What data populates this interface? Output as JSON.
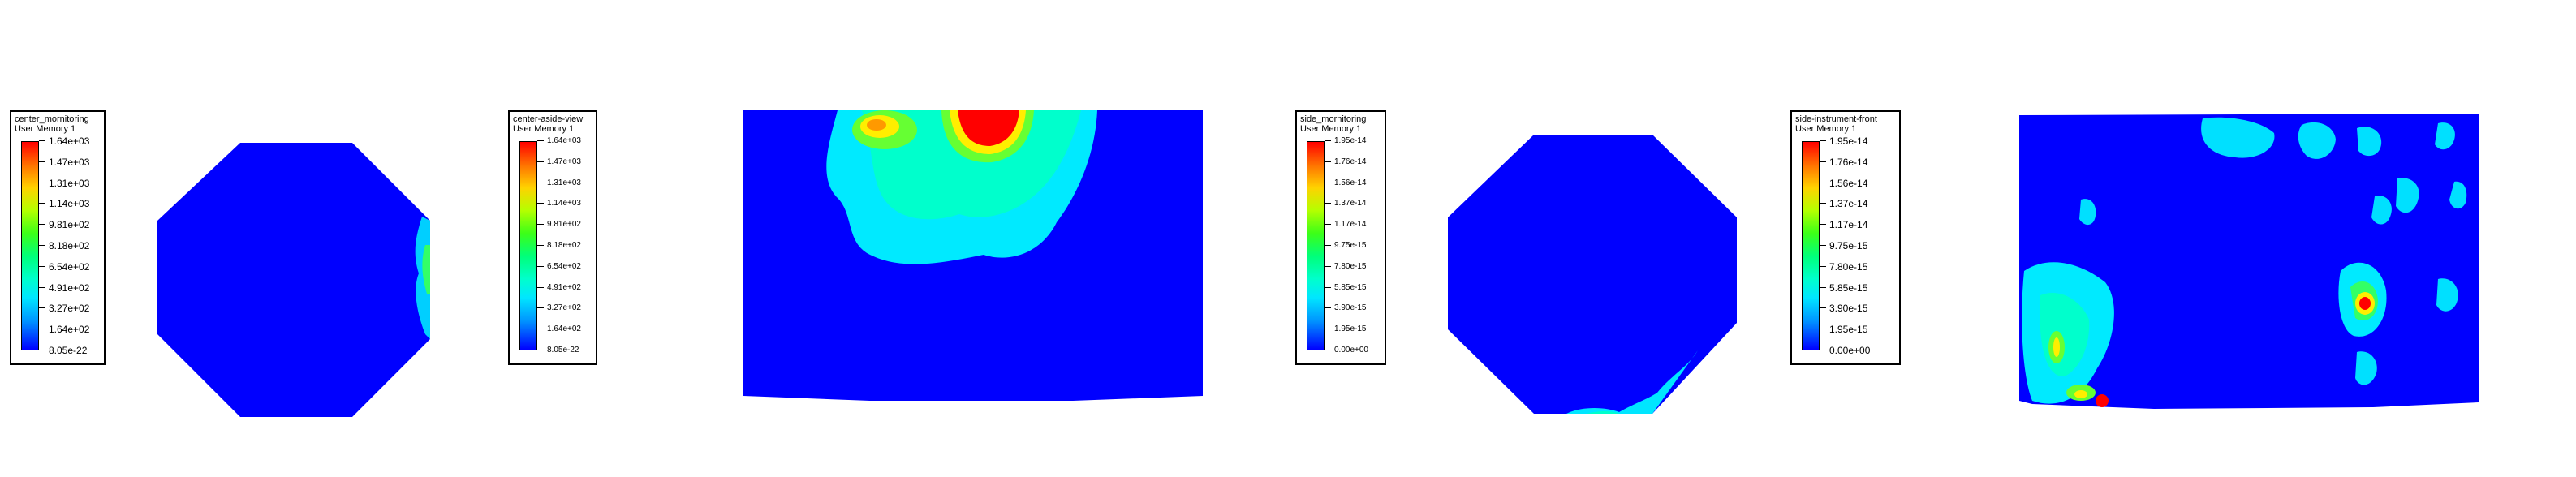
{
  "legends": [
    {
      "title": "center_mornitoring",
      "subtitle": "User Memory 1",
      "ticks": [
        "1.64e+03",
        "1.47e+03",
        "1.31e+03",
        "1.14e+03",
        "9.81e+02",
        "8.18e+02",
        "6.54e+02",
        "4.91e+02",
        "3.27e+02",
        "1.64e+02",
        "8.05e-22"
      ]
    },
    {
      "title": "center-aside-view",
      "subtitle": "User Memory 1",
      "ticks": [
        "1.64e+03",
        "1.47e+03",
        "1.31e+03",
        "1.14e+03",
        "9.81e+02",
        "8.18e+02",
        "6.54e+02",
        "4.91e+02",
        "3.27e+02",
        "1.64e+02",
        "8.05e-22"
      ]
    },
    {
      "title": "side_mornitoring",
      "subtitle": "User Memory 1",
      "ticks": [
        "1.95e-14",
        "1.76e-14",
        "1.56e-14",
        "1.37e-14",
        "1.17e-14",
        "9.75e-15",
        "7.80e-15",
        "5.85e-15",
        "3.90e-15",
        "1.95e-15",
        "0.00e+00"
      ]
    },
    {
      "title": "side-instrument-front",
      "subtitle": "User Memory 1",
      "ticks": [
        "1.95e-14",
        "1.76e-14",
        "1.56e-14",
        "1.37e-14",
        "1.17e-14",
        "9.75e-15",
        "7.80e-15",
        "5.85e-15",
        "3.90e-15",
        "1.95e-15",
        "0.00e+00"
      ]
    }
  ],
  "colors": {
    "domain_blue": "#0000ff",
    "cyan": "#00ffee",
    "green": "#33ff33",
    "yellow": "#ffee00",
    "red": "#ff0000"
  }
}
